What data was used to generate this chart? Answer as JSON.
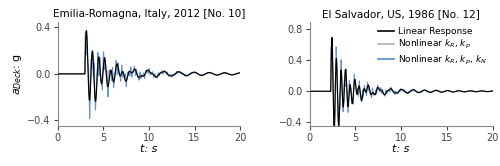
{
  "left_title": "Emilia-Romagna, Italy, 2012 [No. 10]",
  "right_title": "El Salvador, US, 1986 [No. 12]",
  "xlabel": "t: s",
  "ylabel": "$\\it{a}$$_{Deck}$: g",
  "xlim": [
    0,
    20
  ],
  "left_ylim": [
    -0.45,
    0.45
  ],
  "right_ylim": [
    -0.45,
    0.9
  ],
  "left_yticks": [
    -0.4,
    0,
    0.4
  ],
  "right_yticks": [
    -0.4,
    0,
    0.4,
    0.8
  ],
  "xticks": [
    0,
    5,
    10,
    15,
    20
  ],
  "color_linear": "#000000",
  "color_nonlinear_gray": "#b0b0b0",
  "color_nonlinear_blue": "#5588cc",
  "legend_labels": [
    "Linear Response",
    "Nonlinear $k_R$, $k_p$",
    "Nonlinear $k_R$, $k_p$, $k_N$"
  ],
  "title_fontsize": 7.5,
  "label_fontsize": 8,
  "tick_fontsize": 7,
  "legend_fontsize": 6.5
}
